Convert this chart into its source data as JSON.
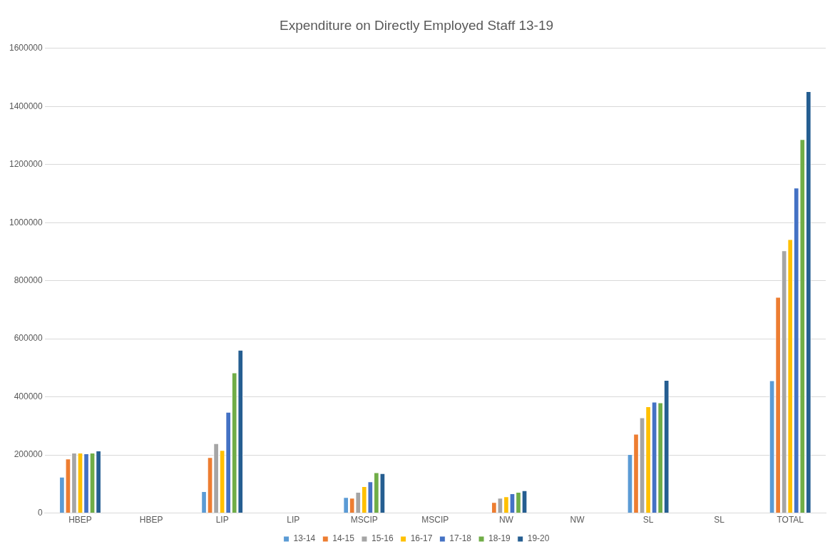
{
  "chart_data": {
    "type": "bar",
    "title": "Expenditure on Directly Employed Staff 13-19",
    "categories": [
      "HBEP",
      "HBEP",
      "LIP",
      "LIP",
      "MSCIP",
      "MSCIP",
      "NW",
      "NW",
      "SL",
      "SL",
      "TOTAL"
    ],
    "series": [
      {
        "name": "13-14",
        "color": "#5b9bd5",
        "values": [
          125000,
          null,
          75000,
          null,
          55000,
          null,
          null,
          null,
          202500,
          null,
          457000
        ]
      },
      {
        "name": "14-15",
        "color": "#ed7d31",
        "values": [
          187500,
          null,
          192500,
          null,
          52500,
          null,
          37500,
          null,
          272500,
          null,
          744000
        ]
      },
      {
        "name": "15-16",
        "color": "#a5a5a5",
        "values": [
          207500,
          null,
          240000,
          null,
          72500,
          null,
          52500,
          null,
          329000,
          null,
          904000
        ]
      },
      {
        "name": "16-17",
        "color": "#ffc000",
        "values": [
          207500,
          null,
          217000,
          null,
          92000,
          null,
          57500,
          null,
          367500,
          null,
          943000
        ]
      },
      {
        "name": "17-18",
        "color": "#4472c4",
        "values": [
          205000,
          null,
          348000,
          null,
          109000,
          null,
          68000,
          null,
          383000,
          null,
          1120000
        ]
      },
      {
        "name": "18-19",
        "color": "#70ad47",
        "values": [
          207500,
          null,
          484000,
          null,
          140000,
          null,
          72500,
          null,
          380500,
          null,
          1287000
        ]
      },
      {
        "name": "19-20",
        "color": "#255e91",
        "values": [
          215000,
          null,
          562000,
          null,
          137000,
          null,
          78000,
          null,
          458000,
          null,
          1452000
        ]
      }
    ],
    "ylim": [
      0,
      1600000
    ],
    "yticks": [
      0,
      200000,
      400000,
      600000,
      800000,
      1000000,
      1200000,
      1400000,
      1600000
    ],
    "grid": "y",
    "legend": "bottom"
  }
}
